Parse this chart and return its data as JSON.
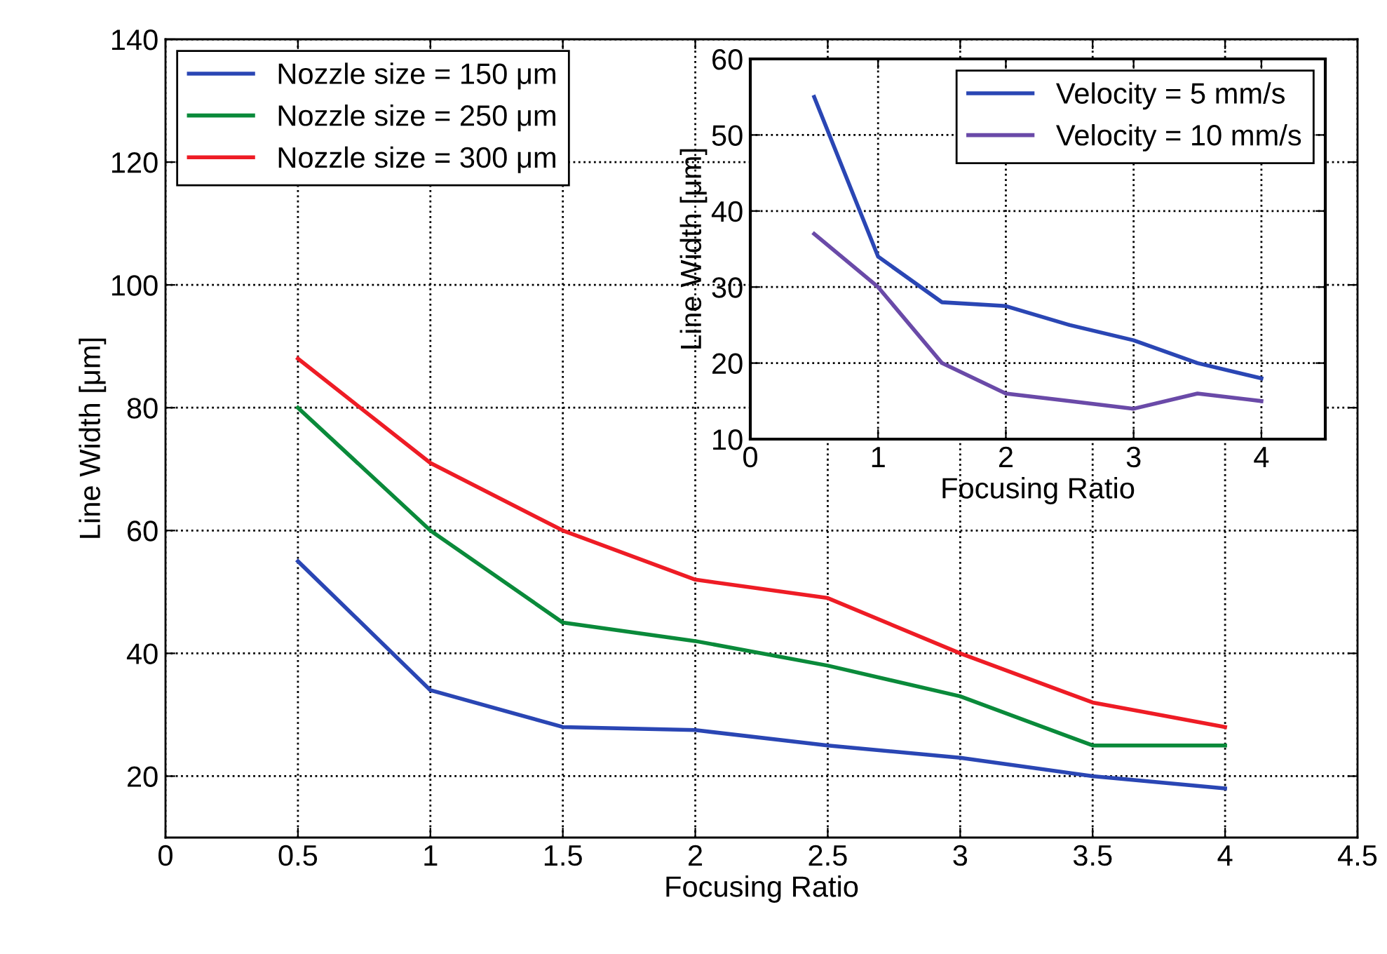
{
  "chart_data": [
    {
      "type": "line",
      "xlabel": "Focusing Ratio",
      "ylabel": "Line Width [μm]",
      "x": [
        0.5,
        1,
        1.5,
        2,
        2.5,
        3,
        3.5,
        4
      ],
      "series": [
        {
          "name": "Nozzle size = 150 μm",
          "color": "#2a46b4",
          "values": [
            55,
            34,
            28,
            27.5,
            25,
            23,
            20,
            18
          ]
        },
        {
          "name": "Nozzle size = 250 μm",
          "color": "#0a8a3a",
          "values": [
            80,
            60,
            45,
            42,
            38,
            33,
            25,
            25
          ]
        },
        {
          "name": "Nozzle size = 300 μm",
          "color": "#ee1c25",
          "values": [
            88,
            71,
            60,
            52,
            49,
            40,
            32,
            28
          ]
        }
      ],
      "xlim": [
        0,
        4.5
      ],
      "xticks": [
        0,
        0.5,
        1,
        1.5,
        2,
        2.5,
        3,
        3.5,
        4,
        4.5
      ],
      "ylim": [
        10,
        140
      ],
      "yticks": [
        20,
        40,
        60,
        80,
        100,
        120,
        140
      ],
      "grid": true,
      "legend": "top left",
      "marker": "none"
    },
    {
      "type": "line",
      "xlabel": "Focusing Ratio",
      "ylabel": "Line Width [μm]",
      "x": [
        0.5,
        1,
        1.5,
        2,
        2.5,
        3,
        3.5,
        4
      ],
      "series": [
        {
          "name": "Velocity = 5 mm/s",
          "color": "#2a46b4",
          "values": [
            55,
            34,
            28,
            27.5,
            25,
            23,
            20,
            18
          ]
        },
        {
          "name": "Velocity = 10 mm/s",
          "color": "#6a4aa8",
          "values": [
            37,
            30,
            20,
            16,
            15,
            14,
            16,
            15
          ]
        }
      ],
      "xlim": [
        0,
        4.5
      ],
      "xticks": [
        0,
        1,
        2,
        3,
        4
      ],
      "ylim": [
        10,
        60
      ],
      "yticks": [
        10,
        20,
        30,
        40,
        50,
        60
      ],
      "grid": true,
      "legend": "top right",
      "marker": "none"
    }
  ]
}
